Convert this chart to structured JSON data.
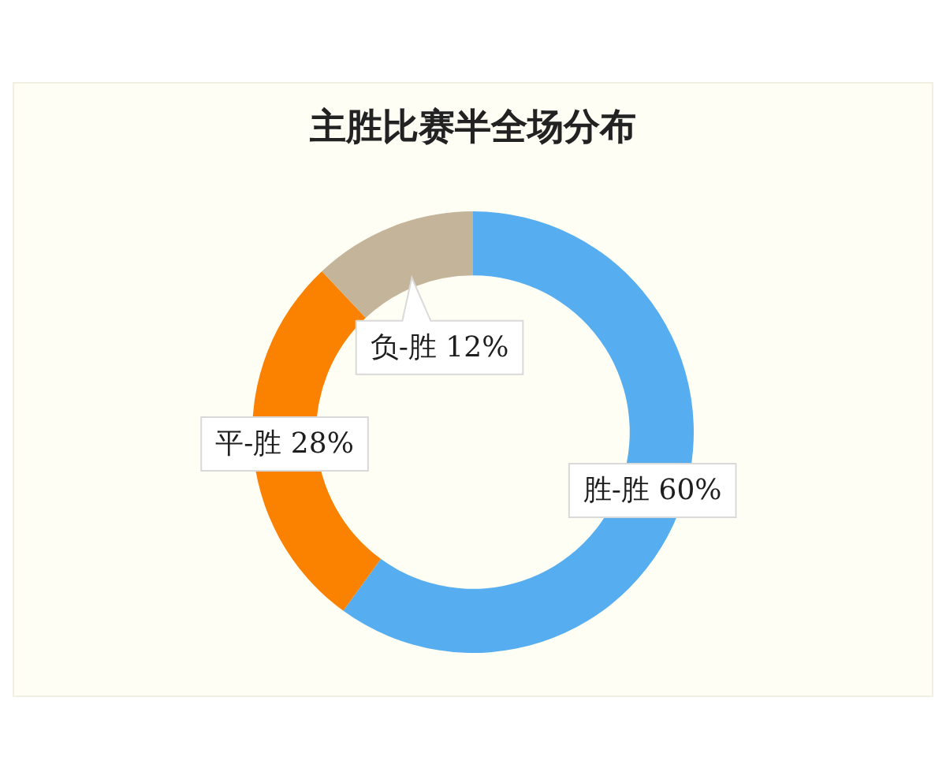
{
  "chart_data": {
    "type": "donut",
    "title": "主胜比赛半全场分布",
    "categories": [
      "胜-胜",
      "平-胜",
      "负-胜"
    ],
    "values": [
      60,
      28,
      12
    ],
    "colors": [
      "#56aef0",
      "#fb8200",
      "#c3b49a"
    ],
    "value_labels": [
      "60%",
      "28%",
      "12%"
    ],
    "legend": false
  }
}
